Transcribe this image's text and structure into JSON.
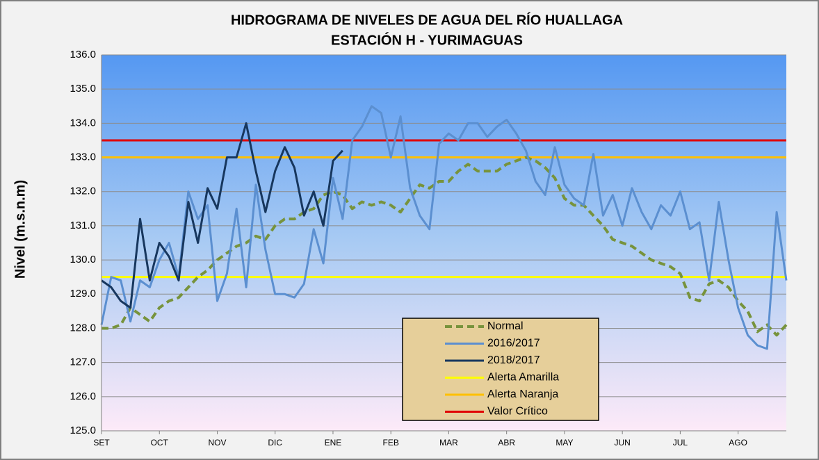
{
  "chart_data": {
    "type": "line",
    "title": [
      "HIDROGRAMA DE NIVELES DE AGUA DEL RÍO HUALLAGA",
      "ESTACIÓN H - YURIMAGUAS"
    ],
    "y_label": "Nivel (m.s.n.m)",
    "categories": [
      "SET",
      null,
      null,
      null,
      null,
      null,
      "OCT",
      null,
      null,
      null,
      null,
      null,
      "NOV",
      null,
      null,
      null,
      null,
      null,
      "DIC",
      null,
      null,
      null,
      null,
      null,
      "ENE",
      null,
      null,
      null,
      null,
      null,
      "FEB",
      null,
      null,
      null,
      null,
      null,
      "MAR",
      null,
      null,
      null,
      null,
      null,
      "ABR",
      null,
      null,
      null,
      null,
      null,
      "MAY",
      null,
      null,
      null,
      null,
      null,
      "JUN",
      null,
      null,
      null,
      null,
      null,
      "JUL",
      null,
      null,
      null,
      null,
      null,
      "AGO",
      null,
      null,
      null,
      null,
      null
    ],
    "ylim": [
      125,
      136
    ],
    "yticks": [
      {
        "value": 125,
        "label": "125.0"
      },
      {
        "value": 126,
        "label": "126.0"
      },
      {
        "value": 127,
        "label": "127.0"
      },
      {
        "value": 128,
        "label": "128.0"
      },
      {
        "value": 129,
        "label": "129.0"
      },
      {
        "value": 130,
        "label": "130.0"
      },
      {
        "value": 131,
        "label": "131.0"
      },
      {
        "value": 132,
        "label": "132.0"
      },
      {
        "value": 133,
        "label": "133.0"
      },
      {
        "value": 134,
        "label": "134.0"
      },
      {
        "value": 135,
        "label": "135.0"
      },
      {
        "value": 136,
        "label": "136.0"
      }
    ],
    "grid": true,
    "series": [
      {
        "name": "Normal",
        "color": "#77933c",
        "dashed": true,
        "values": [
          128.0,
          128.0,
          128.1,
          128.6,
          128.4,
          128.2,
          128.6,
          128.8,
          128.9,
          129.2,
          129.5,
          129.7,
          130.0,
          130.2,
          130.4,
          130.5,
          130.7,
          130.6,
          131.0,
          131.2,
          131.2,
          131.4,
          131.5,
          131.9,
          132.0,
          131.9,
          131.5,
          131.7,
          131.6,
          131.7,
          131.6,
          131.4,
          131.8,
          132.2,
          132.1,
          132.3,
          132.3,
          132.6,
          132.8,
          132.6,
          132.6,
          132.6,
          132.8,
          132.9,
          133.0,
          132.9,
          132.7,
          132.4,
          131.8,
          131.6,
          131.6,
          131.3,
          131.0,
          130.6,
          130.5,
          130.4,
          130.2,
          130.0,
          129.9,
          129.8,
          129.6,
          128.9,
          128.8,
          129.3,
          129.4,
          129.2,
          128.8,
          128.5,
          127.9,
          128.1,
          127.8,
          128.1
        ]
      },
      {
        "name": "2016/2017",
        "color": "#5b8fd0",
        "dashed": false,
        "values": [
          128.1,
          129.5,
          129.4,
          128.2,
          129.4,
          129.2,
          130.0,
          130.5,
          129.5,
          132.0,
          131.2,
          131.6,
          128.8,
          129.6,
          131.5,
          129.2,
          132.2,
          130.3,
          129.0,
          129.0,
          128.9,
          129.3,
          130.9,
          129.9,
          132.4,
          131.2,
          133.5,
          133.9,
          134.5,
          134.3,
          133.0,
          134.2,
          132.1,
          131.3,
          130.9,
          133.4,
          133.7,
          133.5,
          134.0,
          134.0,
          133.6,
          133.9,
          134.1,
          133.7,
          133.2,
          132.3,
          131.9,
          133.3,
          132.2,
          131.8,
          131.6,
          133.1,
          131.3,
          131.9,
          131.0,
          132.1,
          131.4,
          130.9,
          131.6,
          131.3,
          132.0,
          130.9,
          131.1,
          129.4,
          131.7,
          130.0,
          128.6,
          127.8,
          127.5,
          127.4,
          131.4,
          129.4
        ]
      },
      {
        "name": "2018/2017",
        "color": "#17375e",
        "dashed": false,
        "values": [
          129.4,
          129.2,
          128.8,
          128.6,
          131.2,
          129.4,
          130.5,
          130.1,
          129.4,
          131.7,
          130.5,
          132.1,
          131.5,
          133.0,
          133.0,
          134.0,
          132.6,
          131.4,
          132.6,
          133.3,
          132.7,
          131.3,
          132.0,
          131.0,
          132.9,
          133.2,
          null,
          null,
          null,
          null,
          null,
          null,
          null,
          null,
          null,
          null,
          null,
          null,
          null,
          null,
          null,
          null,
          null,
          null,
          null,
          null,
          null,
          null,
          null,
          null,
          null,
          null,
          null,
          null,
          null,
          null,
          null,
          null,
          null,
          null,
          null,
          null,
          null,
          null,
          null,
          null,
          null,
          null,
          null,
          null,
          null,
          null
        ]
      }
    ],
    "thresholds": [
      {
        "name": "Alerta Amarilla",
        "color": "#ffff00",
        "value": 129.5
      },
      {
        "name": "Alerta Naranja",
        "color": "#ffc000",
        "value": 133.0
      },
      {
        "name": "Valor Crítico",
        "color": "#e00000",
        "value": 133.5
      }
    ]
  }
}
